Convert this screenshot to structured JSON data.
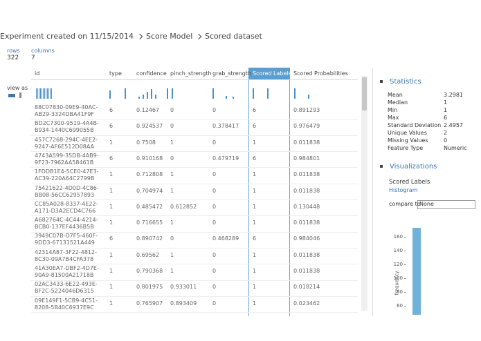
{
  "breadcrumb": [
    "Experiment created on 11/15/2014",
    "Score Model",
    "Scored dataset"
  ],
  "summary": {
    "rows_label": "rows",
    "rows": "322",
    "columns_label": "columns",
    "columns": "7"
  },
  "view_as": "view as",
  "table": {
    "headers": [
      "id",
      "type",
      "confidence",
      "pinch_strength",
      "grab_strength",
      "Scored Labels",
      "Scored Probabilities"
    ],
    "rows": [
      [
        [
          "88C07830-09E9-40AC-",
          "AB29-3324DBA41F9F"
        ],
        "6",
        "0.12467",
        "0",
        "0",
        "6",
        "0.891293"
      ],
      [
        [
          "BD2C7300-9519-4A4B-",
          "B934-1440C699055B"
        ],
        "6",
        "0.924537",
        "0",
        "0.378417",
        "6",
        "0.976479"
      ],
      [
        [
          "457C7268-294C-4EE2-",
          "9247-AF6E512D08AA"
        ],
        "1",
        "0.7508",
        "1",
        "0",
        "1",
        "0.011838"
      ],
      [
        [
          "4743A599-35DB-4AB9-",
          "9F23-7962AA58461B"
        ],
        "6",
        "0.910168",
        "0",
        "0.479719",
        "6",
        "0.984801"
      ],
      [
        [
          "1FDDB1E4-5CE0-47E3-",
          "AC39-220A64C2799B"
        ],
        "1",
        "0.712808",
        "1",
        "0",
        "1",
        "0.011838"
      ],
      [
        [
          "75421622-4D0D-4C86-",
          "BB08-56CC62957893"
        ],
        "1",
        "0.704974",
        "1",
        "0",
        "1",
        "0.011838"
      ],
      [
        [
          "CC85A028-8337-4E22-",
          "A171-D3A2ECD4C766"
        ],
        "1",
        "0.485472",
        "0.612852",
        "0",
        "1",
        "0.130448"
      ],
      [
        [
          "A682764C-4C44-4214-",
          "BCB0-137EF4436B5B"
        ],
        "1",
        "0.716655",
        "1",
        "0",
        "1",
        "0.011838"
      ],
      [
        [
          "3949C07B-D7F5-460F-",
          "9DD3-67131521A449"
        ],
        "6",
        "0.890742",
        "0",
        "0.468289",
        "6",
        "0.984046"
      ],
      [
        [
          "42314A87-3F22-4812-",
          "8C30-09A7B4CFA378"
        ],
        "1",
        "0.69562",
        "1",
        "0",
        "1",
        "0.011838"
      ],
      [
        [
          "41A30EA7-DBF2-4D7E-",
          "90A9-81500A21718B"
        ],
        "1",
        "0.790368",
        "1",
        "0",
        "1",
        "0.011838"
      ],
      [
        [
          "02AC3433-6E22-493E-",
          "BF2C-5224046D6315"
        ],
        "1",
        "0.801975",
        "0.933011",
        "0",
        "1",
        "0.018214"
      ],
      [
        [
          "09E149F1-5CB9-4C51-",
          "8208-5B40C6937E9C"
        ],
        "1",
        "0.765907",
        "0.893409",
        "0",
        "1",
        "0.023462"
      ]
    ]
  },
  "statistics": {
    "title": "Statistics",
    "items": [
      [
        "Mean",
        "3.2981"
      ],
      [
        "Median",
        "1"
      ],
      [
        "Min",
        "1"
      ],
      [
        "Max",
        "6"
      ],
      [
        "Standard Deviation",
        "2.4957"
      ],
      [
        "Unique Values",
        "2"
      ],
      [
        "Missing Values",
        "0"
      ],
      [
        "Feature Type",
        "Numeric"
      ]
    ]
  },
  "visualizations": {
    "title": "Visualizations",
    "column": "Scored Labels",
    "kind": "Histogram",
    "compare_label": "compare to",
    "compare_value": "None",
    "histogram": {
      "y_label": "frequency",
      "yticks": [
        160,
        140,
        120,
        100,
        80,
        60
      ]
    }
  }
}
